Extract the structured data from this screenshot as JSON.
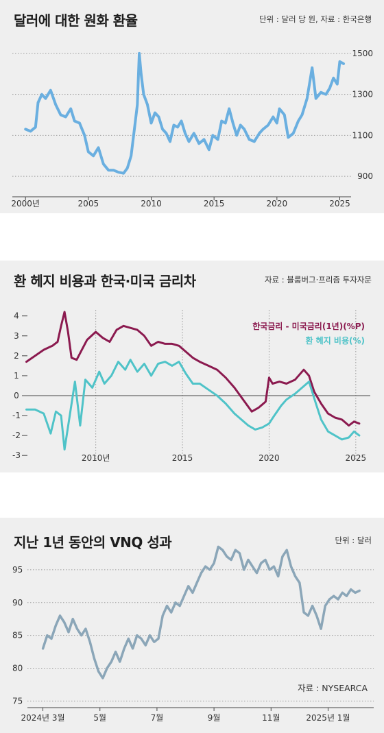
{
  "charts": {
    "won": {
      "title": "달러에 대한 원화 환율",
      "note": "단위 : 달러 당 원, 자료 : 한국은행",
      "color": "#6aafe0"
    },
    "hedge": {
      "title": "환 헤지 비용과 한국·미국 금리차",
      "note": "자료 : 블룸버그·프리즘 투자자문",
      "legend_rate": "한국금리 - 미국금리(1년)(%P)",
      "legend_hedge": "환 헤지 비용(%)",
      "color_rate": "#8b1a4f",
      "color_hedge": "#4fc3c8"
    },
    "vnq": {
      "title": "지난 1년 동안의 VNQ 성과",
      "note": "단위 : 달러",
      "source": "자료 : NYSEARCA",
      "color": "#8ba6b8"
    }
  },
  "chart_data": [
    {
      "type": "line",
      "title": "달러에 대한 원화 환율",
      "ylabel": "단위 : 달러 당 원",
      "ylim": [
        800,
        1560
      ],
      "yticks": [
        900,
        1100,
        1300,
        1500
      ],
      "xticks": [
        {
          "x": 2000,
          "label": "2000년"
        },
        {
          "x": 2005,
          "label": "2005"
        },
        {
          "x": 2010,
          "label": "2010"
        },
        {
          "x": 2015,
          "label": "2015"
        },
        {
          "x": 2020,
          "label": "2020"
        },
        {
          "x": 2025,
          "label": "2025"
        }
      ],
      "xlim": [
        1999.5,
        2025.9
      ],
      "series": [
        {
          "x": [
            2000.0,
            2000.4,
            2000.8,
            2001.0,
            2001.3,
            2001.6,
            2002.0,
            2002.4,
            2002.8,
            2003.2,
            2003.6,
            2003.9,
            2004.3,
            2004.7,
            2005.0,
            2005.4,
            2005.8,
            2006.2,
            2006.6,
            2007.0,
            2007.4,
            2007.8,
            2008.1,
            2008.4,
            2008.7,
            2008.9,
            2009.05,
            2009.2,
            2009.4,
            2009.7,
            2010.0,
            2010.3,
            2010.6,
            2010.9,
            2011.2,
            2011.5,
            2011.8,
            2012.1,
            2012.4,
            2012.7,
            2013.0,
            2013.4,
            2013.8,
            2014.2,
            2014.6,
            2014.9,
            2015.3,
            2015.6,
            2015.9,
            2016.2,
            2016.5,
            2016.8,
            2017.1,
            2017.4,
            2017.8,
            2018.2,
            2018.6,
            2018.9,
            2019.3,
            2019.7,
            2020.0,
            2020.2,
            2020.6,
            2020.9,
            2021.3,
            2021.7,
            2022.0,
            2022.4,
            2022.8,
            2023.1,
            2023.5,
            2023.9,
            2024.2,
            2024.5,
            2024.8,
            2025.0,
            2025.3
          ],
          "y": [
            1130,
            1120,
            1140,
            1260,
            1300,
            1280,
            1320,
            1250,
            1200,
            1190,
            1230,
            1170,
            1160,
            1100,
            1020,
            1000,
            1040,
            960,
            930,
            930,
            920,
            915,
            940,
            1000,
            1150,
            1250,
            1500,
            1400,
            1300,
            1250,
            1160,
            1210,
            1190,
            1130,
            1110,
            1070,
            1150,
            1140,
            1170,
            1110,
            1070,
            1110,
            1060,
            1080,
            1030,
            1100,
            1080,
            1170,
            1160,
            1230,
            1160,
            1100,
            1150,
            1130,
            1080,
            1070,
            1110,
            1130,
            1150,
            1190,
            1160,
            1230,
            1200,
            1090,
            1110,
            1170,
            1200,
            1280,
            1430,
            1280,
            1310,
            1300,
            1330,
            1380,
            1350,
            1460,
            1450
          ]
        }
      ]
    },
    {
      "type": "line",
      "title": "환 헤지 비용과 한국·미국 금리차",
      "ylim": [
        -3.2,
        4.3
      ],
      "yticks": [
        -3,
        -2,
        -1,
        0,
        1,
        2,
        3,
        4
      ],
      "xticks": [
        {
          "x": 2010,
          "label": "2010년"
        },
        {
          "x": 2015,
          "label": "2015"
        },
        {
          "x": 2020,
          "label": "2020"
        },
        {
          "x": 2025,
          "label": "2025"
        }
      ],
      "xlim": [
        2005.9,
        2025.6
      ],
      "series": [
        {
          "name": "한국금리 - 미국금리(1년)(%P)",
          "x": [
            2006.0,
            2006.5,
            2007.0,
            2007.5,
            2007.8,
            2008.0,
            2008.2,
            2008.4,
            2008.6,
            2008.9,
            2009.2,
            2009.5,
            2010.0,
            2010.4,
            2010.8,
            2011.2,
            2011.6,
            2012.0,
            2012.4,
            2012.8,
            2013.2,
            2013.6,
            2014.0,
            2014.4,
            2014.8,
            2015.2,
            2015.6,
            2016.0,
            2016.5,
            2017.0,
            2017.5,
            2018.0,
            2018.5,
            2019.0,
            2019.4,
            2019.8,
            2020.0,
            2020.2,
            2020.6,
            2021.0,
            2021.5,
            2022.0,
            2022.3,
            2022.6,
            2023.0,
            2023.4,
            2023.8,
            2024.2,
            2024.6,
            2024.9,
            2025.2
          ],
          "y": [
            1.7,
            2.0,
            2.3,
            2.5,
            2.7,
            3.5,
            4.2,
            3.2,
            1.9,
            1.8,
            2.3,
            2.8,
            3.2,
            2.9,
            2.7,
            3.3,
            3.5,
            3.4,
            3.3,
            3.0,
            2.5,
            2.7,
            2.6,
            2.6,
            2.5,
            2.2,
            1.9,
            1.7,
            1.5,
            1.3,
            0.9,
            0.4,
            -0.2,
            -0.8,
            -0.6,
            -0.3,
            0.9,
            0.6,
            0.7,
            0.6,
            0.8,
            1.3,
            1.0,
            0.2,
            -0.4,
            -0.9,
            -1.1,
            -1.2,
            -1.5,
            -1.3,
            -1.4
          ]
        },
        {
          "name": "환 헤지 비용(%)",
          "x": [
            2006.0,
            2006.5,
            2007.0,
            2007.4,
            2007.7,
            2008.0,
            2008.2,
            2008.5,
            2008.8,
            2009.1,
            2009.4,
            2009.8,
            2010.2,
            2010.5,
            2010.9,
            2011.3,
            2011.7,
            2012.0,
            2012.4,
            2012.8,
            2013.2,
            2013.6,
            2014.0,
            2014.4,
            2014.8,
            2015.2,
            2015.6,
            2016.0,
            2016.5,
            2017.0,
            2017.5,
            2018.0,
            2018.4,
            2018.8,
            2019.2,
            2019.6,
            2020.0,
            2020.3,
            2020.7,
            2021.0,
            2021.5,
            2021.9,
            2022.3,
            2022.7,
            2023.0,
            2023.4,
            2023.8,
            2024.2,
            2024.6,
            2024.9,
            2025.2
          ],
          "y": [
            -0.7,
            -0.7,
            -0.9,
            -1.9,
            -0.8,
            -1.0,
            -2.7,
            -1.0,
            0.7,
            -1.5,
            0.8,
            0.4,
            1.2,
            0.6,
            1.0,
            1.7,
            1.3,
            1.8,
            1.2,
            1.6,
            1.0,
            1.6,
            1.7,
            1.5,
            1.7,
            1.1,
            0.6,
            0.6,
            0.3,
            0.0,
            -0.4,
            -0.9,
            -1.2,
            -1.5,
            -1.7,
            -1.6,
            -1.4,
            -1.0,
            -0.5,
            -0.2,
            0.1,
            0.4,
            0.7,
            -0.4,
            -1.2,
            -1.8,
            -2.0,
            -2.2,
            -2.1,
            -1.8,
            -2.0
          ]
        }
      ]
    },
    {
      "type": "line",
      "title": "지난 1년 동안의 VNQ 성과",
      "ylabel": "단위 : 달러",
      "ylim": [
        74,
        100
      ],
      "yticks": [
        75,
        80,
        85,
        90,
        95
      ],
      "xticks": [
        {
          "x": 0,
          "label": "2024년 3월"
        },
        {
          "x": 2,
          "label": "5월"
        },
        {
          "x": 4,
          "label": "7월"
        },
        {
          "x": 6,
          "label": "9월"
        },
        {
          "x": 8,
          "label": "11월"
        },
        {
          "x": 10,
          "label": "2025년 1월"
        }
      ],
      "xlim": [
        -0.35,
        11.6
      ],
      "series": [
        {
          "x": [
            0.0,
            0.15,
            0.3,
            0.45,
            0.6,
            0.75,
            0.9,
            1.05,
            1.2,
            1.35,
            1.5,
            1.65,
            1.8,
            1.95,
            2.1,
            2.25,
            2.4,
            2.55,
            2.7,
            2.85,
            3.0,
            3.15,
            3.3,
            3.45,
            3.6,
            3.75,
            3.9,
            4.05,
            4.2,
            4.35,
            4.5,
            4.65,
            4.8,
            4.95,
            5.1,
            5.25,
            5.4,
            5.55,
            5.7,
            5.85,
            6.0,
            6.15,
            6.3,
            6.45,
            6.6,
            6.75,
            6.9,
            7.05,
            7.2,
            7.35,
            7.5,
            7.65,
            7.8,
            7.95,
            8.1,
            8.25,
            8.4,
            8.55,
            8.7,
            8.85,
            9.0,
            9.15,
            9.3,
            9.45,
            9.6,
            9.75,
            9.9,
            10.05,
            10.2,
            10.35,
            10.5,
            10.65,
            10.8,
            10.95,
            11.1
          ],
          "y": [
            83.0,
            85.0,
            84.5,
            86.5,
            88.0,
            87.0,
            85.5,
            87.5,
            86.0,
            85.0,
            86.0,
            84.0,
            81.5,
            79.5,
            78.5,
            80.0,
            81.0,
            82.5,
            81.0,
            83.0,
            84.5,
            83.0,
            85.0,
            84.5,
            83.5,
            85.0,
            84.0,
            84.5,
            88.0,
            89.5,
            88.5,
            90.0,
            89.5,
            91.0,
            92.5,
            91.5,
            93.0,
            94.5,
            95.5,
            95.0,
            96.0,
            98.5,
            98.0,
            97.0,
            96.5,
            98.0,
            97.5,
            95.0,
            96.5,
            95.5,
            94.5,
            96.0,
            96.5,
            95.0,
            95.5,
            94.0,
            97.0,
            98.0,
            95.5,
            94.0,
            93.0,
            88.5,
            88.0,
            89.5,
            88.0,
            86.0,
            89.5,
            90.5,
            91.0,
            90.5,
            91.5,
            91.0,
            92.0,
            91.5,
            91.8
          ]
        }
      ]
    }
  ]
}
